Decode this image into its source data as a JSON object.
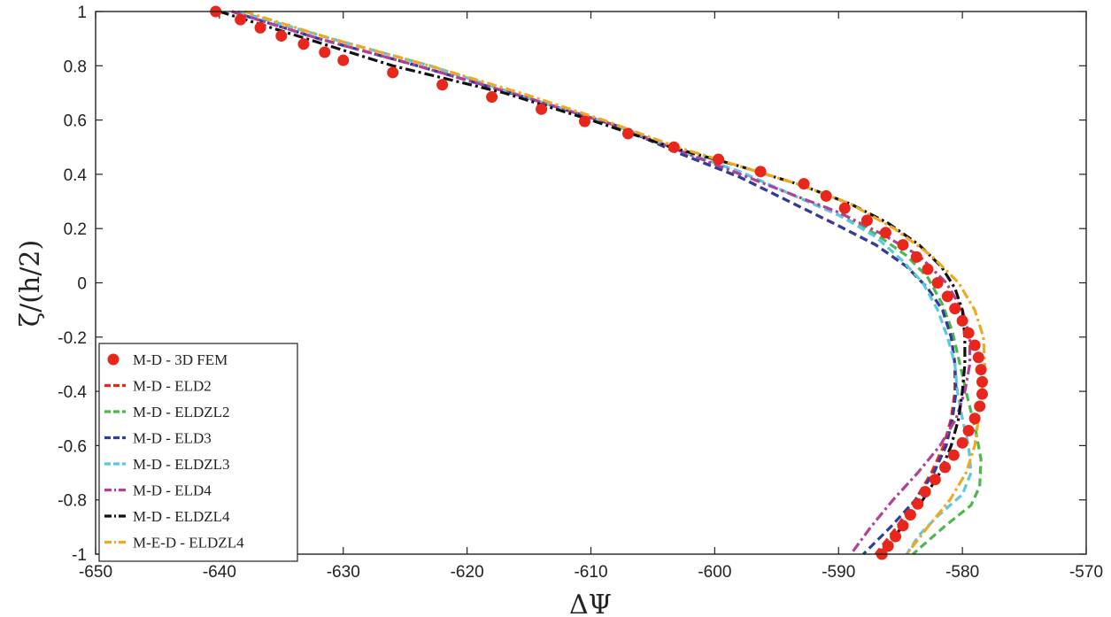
{
  "chart_data": {
    "type": "line",
    "xlabel": "ΔΨ",
    "ylabel": "ζ/(h/2)",
    "xlim": [
      -650,
      -570
    ],
    "ylim": [
      -1,
      1
    ],
    "grid": false,
    "legend_position": "bottom-left",
    "x_ticks": [
      "-650",
      "-640",
      "-630",
      "-620",
      "-610",
      "-600",
      "-590",
      "-580",
      "-570"
    ],
    "y_ticks": [
      "1",
      "0.8",
      "0.6",
      "0.4",
      "0.2",
      "0",
      "-0.2",
      "-0.4",
      "-0.6",
      "-0.8",
      "-1"
    ],
    "series": [
      {
        "name": "M-D - 3D FEM",
        "style": "markers",
        "color": "#e8261c",
        "points": [
          [
            -640.3,
            1.0
          ],
          [
            -638.3,
            0.97
          ],
          [
            -636.7,
            0.94
          ],
          [
            -635.0,
            0.91
          ],
          [
            -633.2,
            0.88
          ],
          [
            -631.5,
            0.85
          ],
          [
            -630.0,
            0.82
          ],
          [
            -626.0,
            0.775
          ],
          [
            -622.0,
            0.73
          ],
          [
            -618.0,
            0.685
          ],
          [
            -614.0,
            0.64
          ],
          [
            -610.5,
            0.595
          ],
          [
            -607.0,
            0.55
          ],
          [
            -603.3,
            0.5
          ],
          [
            -599.7,
            0.455
          ],
          [
            -596.3,
            0.41
          ],
          [
            -592.8,
            0.365
          ],
          [
            -591.0,
            0.32
          ],
          [
            -589.5,
            0.275
          ],
          [
            -587.7,
            0.23
          ],
          [
            -586.2,
            0.185
          ],
          [
            -584.8,
            0.14
          ],
          [
            -583.7,
            0.095
          ],
          [
            -582.8,
            0.05
          ],
          [
            -582.0,
            0.0
          ],
          [
            -581.2,
            -0.05
          ],
          [
            -580.6,
            -0.095
          ],
          [
            -580.0,
            -0.14
          ],
          [
            -579.5,
            -0.185
          ],
          [
            -579.0,
            -0.23
          ],
          [
            -578.7,
            -0.275
          ],
          [
            -578.5,
            -0.32
          ],
          [
            -578.4,
            -0.365
          ],
          [
            -578.4,
            -0.41
          ],
          [
            -578.6,
            -0.455
          ],
          [
            -579.0,
            -0.5
          ],
          [
            -579.5,
            -0.545
          ],
          [
            -580.0,
            -0.59
          ],
          [
            -580.7,
            -0.635
          ],
          [
            -581.4,
            -0.68
          ],
          [
            -582.2,
            -0.725
          ],
          [
            -583.0,
            -0.77
          ],
          [
            -583.6,
            -0.815
          ],
          [
            -584.2,
            -0.855
          ],
          [
            -584.8,
            -0.895
          ],
          [
            -585.4,
            -0.935
          ],
          [
            -586.0,
            -0.97
          ],
          [
            -586.5,
            -1.0
          ]
        ]
      },
      {
        "name": "M-D - ELD2",
        "style": "dash",
        "color": "#e8261c",
        "points": [
          [
            -639.0,
            1.0
          ],
          [
            -632.0,
            0.9
          ],
          [
            -624.0,
            0.8
          ],
          [
            -615.0,
            0.68
          ],
          [
            -608.0,
            0.58
          ],
          [
            -603.0,
            0.48
          ],
          [
            -598.0,
            0.39
          ],
          [
            -594.0,
            0.3
          ],
          [
            -590.0,
            0.21
          ],
          [
            -587.0,
            0.14
          ],
          [
            -584.5,
            0.06
          ],
          [
            -582.8,
            -0.02
          ],
          [
            -581.6,
            -0.1
          ],
          [
            -580.9,
            -0.2
          ],
          [
            -580.6,
            -0.3
          ],
          [
            -580.6,
            -0.4
          ],
          [
            -580.9,
            -0.5
          ],
          [
            -581.5,
            -0.6
          ],
          [
            -582.5,
            -0.7
          ],
          [
            -583.8,
            -0.8
          ],
          [
            -585.3,
            -0.9
          ],
          [
            -587.0,
            -1.0
          ]
        ]
      },
      {
        "name": "M-D - ELDZL2",
        "style": "dash",
        "color": "#4cb84c",
        "points": [
          [
            -638.5,
            1.0
          ],
          [
            -631.0,
            0.9
          ],
          [
            -623.0,
            0.8
          ],
          [
            -615.0,
            0.68
          ],
          [
            -608.0,
            0.58
          ],
          [
            -603.0,
            0.49
          ],
          [
            -598.0,
            0.41
          ],
          [
            -594.0,
            0.33
          ],
          [
            -590.0,
            0.25
          ],
          [
            -587.0,
            0.18
          ],
          [
            -584.5,
            0.1
          ],
          [
            -582.8,
            0.02
          ],
          [
            -581.6,
            -0.08
          ],
          [
            -580.8,
            -0.18
          ],
          [
            -580.2,
            -0.3
          ],
          [
            -579.6,
            -0.42
          ],
          [
            -578.9,
            -0.55
          ],
          [
            -578.5,
            -0.65
          ],
          [
            -578.6,
            -0.75
          ],
          [
            -579.3,
            -0.82
          ],
          [
            -581.5,
            -0.9
          ],
          [
            -584.0,
            -1.0
          ]
        ]
      },
      {
        "name": "M-D - ELD3",
        "style": "dash",
        "color": "#2d3e9c",
        "points": [
          [
            -639.0,
            1.0
          ],
          [
            -632.0,
            0.9
          ],
          [
            -624.0,
            0.8
          ],
          [
            -615.0,
            0.68
          ],
          [
            -608.0,
            0.58
          ],
          [
            -603.0,
            0.48
          ],
          [
            -598.0,
            0.39
          ],
          [
            -594.0,
            0.3
          ],
          [
            -590.0,
            0.21
          ],
          [
            -587.0,
            0.14
          ],
          [
            -584.5,
            0.06
          ],
          [
            -582.8,
            -0.02
          ],
          [
            -581.6,
            -0.1
          ],
          [
            -580.9,
            -0.2
          ],
          [
            -580.6,
            -0.3
          ],
          [
            -580.5,
            -0.4
          ],
          [
            -580.8,
            -0.5
          ],
          [
            -581.3,
            -0.6
          ],
          [
            -582.3,
            -0.7
          ],
          [
            -583.8,
            -0.8
          ],
          [
            -585.8,
            -0.9
          ],
          [
            -588.0,
            -1.0
          ]
        ]
      },
      {
        "name": "M-D - ELDZL3",
        "style": "dash",
        "color": "#5bc8e0",
        "points": [
          [
            -638.5,
            1.0
          ],
          [
            -631.0,
            0.9
          ],
          [
            -623.0,
            0.8
          ],
          [
            -615.0,
            0.68
          ],
          [
            -608.0,
            0.58
          ],
          [
            -603.0,
            0.49
          ],
          [
            -598.0,
            0.41
          ],
          [
            -594.0,
            0.33
          ],
          [
            -590.0,
            0.25
          ],
          [
            -587.0,
            0.17
          ],
          [
            -584.8,
            0.08
          ],
          [
            -583.2,
            0.0
          ],
          [
            -582.0,
            -0.1
          ],
          [
            -581.2,
            -0.2
          ],
          [
            -580.6,
            -0.3
          ],
          [
            -580.4,
            -0.4
          ],
          [
            -580.0,
            -0.5
          ],
          [
            -579.5,
            -0.6
          ],
          [
            -579.3,
            -0.7
          ],
          [
            -580.0,
            -0.78
          ],
          [
            -582.0,
            -0.86
          ],
          [
            -583.5,
            -0.93
          ],
          [
            -584.5,
            -1.0
          ]
        ]
      },
      {
        "name": "M-D - ELD4",
        "style": "dashdot",
        "color": "#b0409c",
        "points": [
          [
            -639.0,
            1.0
          ],
          [
            -632.0,
            0.9
          ],
          [
            -624.0,
            0.8
          ],
          [
            -615.0,
            0.68
          ],
          [
            -608.0,
            0.58
          ],
          [
            -603.0,
            0.49
          ],
          [
            -598.5,
            0.41
          ],
          [
            -594.0,
            0.33
          ],
          [
            -590.0,
            0.26
          ],
          [
            -586.5,
            0.18
          ],
          [
            -583.5,
            0.1
          ],
          [
            -581.3,
            0.0
          ],
          [
            -580.0,
            -0.1
          ],
          [
            -579.4,
            -0.2
          ],
          [
            -579.4,
            -0.3
          ],
          [
            -579.8,
            -0.4
          ],
          [
            -580.5,
            -0.5
          ],
          [
            -581.8,
            -0.6
          ],
          [
            -583.6,
            -0.7
          ],
          [
            -585.6,
            -0.8
          ],
          [
            -587.4,
            -0.9
          ],
          [
            -589.0,
            -1.0
          ]
        ]
      },
      {
        "name": "M-D - ELDZL4",
        "style": "dashdot",
        "color": "#111111",
        "points": [
          [
            -640.0,
            1.0
          ],
          [
            -633.0,
            0.9
          ],
          [
            -626.0,
            0.8
          ],
          [
            -617.0,
            0.7
          ],
          [
            -610.0,
            0.6
          ],
          [
            -603.5,
            0.5
          ],
          [
            -598.0,
            0.43
          ],
          [
            -593.0,
            0.36
          ],
          [
            -589.0,
            0.29
          ],
          [
            -586.0,
            0.22
          ],
          [
            -583.5,
            0.14
          ],
          [
            -581.7,
            0.06
          ],
          [
            -580.6,
            -0.02
          ],
          [
            -580.0,
            -0.1
          ],
          [
            -579.8,
            -0.2
          ],
          [
            -579.8,
            -0.3
          ],
          [
            -580.0,
            -0.4
          ],
          [
            -580.3,
            -0.5
          ],
          [
            -580.9,
            -0.6
          ],
          [
            -581.8,
            -0.7
          ],
          [
            -583.2,
            -0.8
          ],
          [
            -584.9,
            -0.9
          ],
          [
            -586.5,
            -1.0
          ]
        ]
      },
      {
        "name": "M-E-D - ELDZL4",
        "style": "dashdot",
        "color": "#f0a820",
        "points": [
          [
            -638.0,
            1.0
          ],
          [
            -631.0,
            0.9
          ],
          [
            -623.0,
            0.8
          ],
          [
            -615.0,
            0.69
          ],
          [
            -609.0,
            0.6
          ],
          [
            -603.0,
            0.5
          ],
          [
            -598.0,
            0.43
          ],
          [
            -593.0,
            0.36
          ],
          [
            -589.0,
            0.29
          ],
          [
            -585.5,
            0.2
          ],
          [
            -582.5,
            0.1
          ],
          [
            -580.3,
            0.0
          ],
          [
            -579.0,
            -0.1
          ],
          [
            -578.3,
            -0.2
          ],
          [
            -578.2,
            -0.3
          ],
          [
            -578.4,
            -0.4
          ],
          [
            -578.7,
            -0.5
          ],
          [
            -579.0,
            -0.6
          ],
          [
            -579.7,
            -0.7
          ],
          [
            -581.0,
            -0.8
          ],
          [
            -582.8,
            -0.9
          ],
          [
            -584.5,
            -1.0
          ]
        ]
      }
    ]
  }
}
